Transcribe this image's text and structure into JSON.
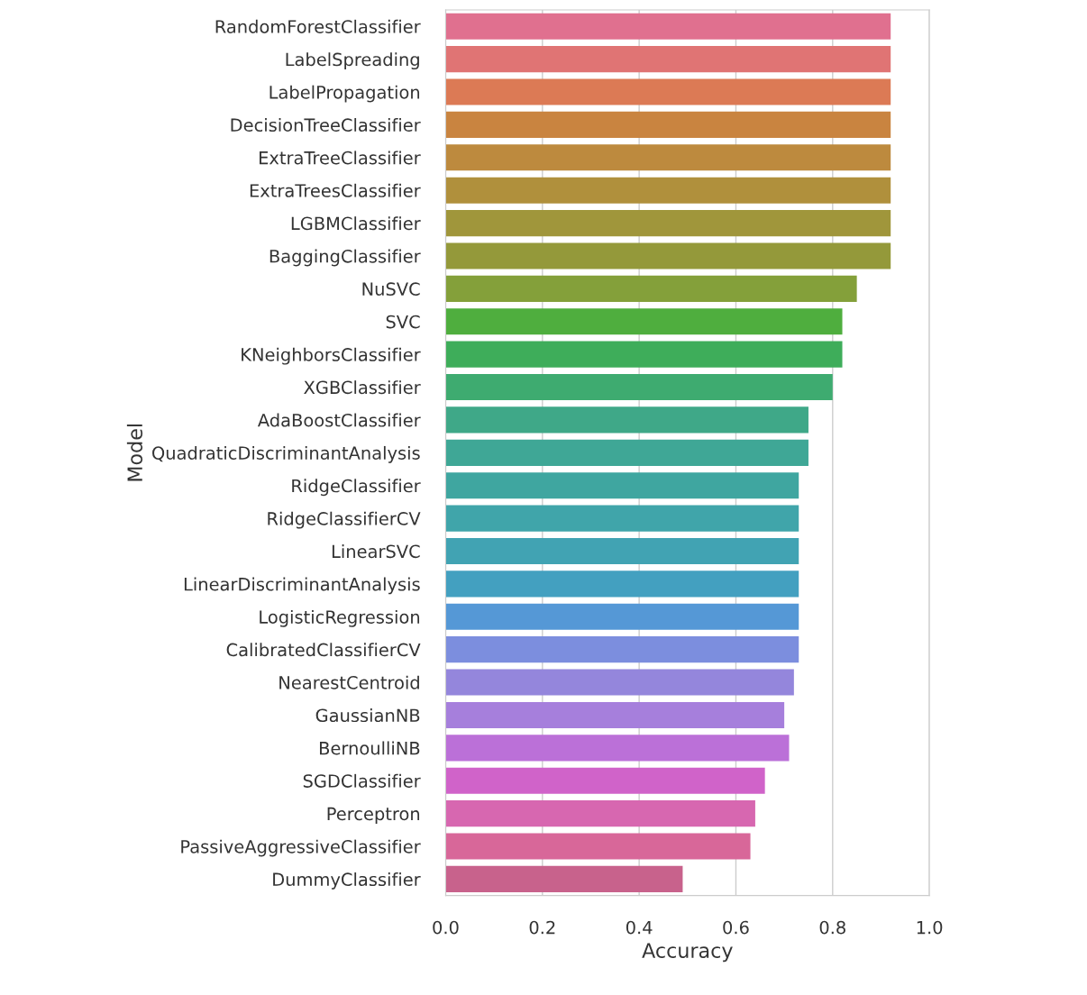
{
  "chart_data": {
    "type": "bar",
    "orientation": "horizontal",
    "xlabel": "Accuracy",
    "ylabel": "Model",
    "categories": [
      "RandomForestClassifier",
      "LabelSpreading",
      "LabelPropagation",
      "DecisionTreeClassifier",
      "ExtraTreeClassifier",
      "ExtraTreesClassifier",
      "LGBMClassifier",
      "BaggingClassifier",
      "NuSVC",
      "SVC",
      "KNeighborsClassifier",
      "XGBClassifier",
      "AdaBoostClassifier",
      "QuadraticDiscriminantAnalysis",
      "RidgeClassifier",
      "RidgeClassifierCV",
      "LinearSVC",
      "LinearDiscriminantAnalysis",
      "LogisticRegression",
      "CalibratedClassifierCV",
      "NearestCentroid",
      "GaussianNB",
      "BernoulliNB",
      "SGDClassifier",
      "Perceptron",
      "PassiveAggressiveClassifier",
      "DummyClassifier"
    ],
    "values": [
      0.92,
      0.92,
      0.92,
      0.92,
      0.92,
      0.92,
      0.92,
      0.92,
      0.85,
      0.82,
      0.82,
      0.8,
      0.75,
      0.75,
      0.73,
      0.73,
      0.73,
      0.73,
      0.73,
      0.73,
      0.72,
      0.7,
      0.71,
      0.66,
      0.64,
      0.63,
      0.49
    ],
    "colors": [
      "#e0708f",
      "#e07474",
      "#dc7a55",
      "#c98440",
      "#bd8a3e",
      "#b0903c",
      "#a0963b",
      "#94993a",
      "#84a03a",
      "#4fae3e",
      "#3ead5a",
      "#3eab70",
      "#3fa888",
      "#3fa796",
      "#3fa6a0",
      "#40a5aa",
      "#41a3b3",
      "#43a0c0",
      "#5598d6",
      "#7c8ede",
      "#9486dc",
      "#a67fdc",
      "#bb70d8",
      "#d063c9",
      "#d767b0",
      "#d86799",
      "#c8628c"
    ],
    "xlim": [
      0.0,
      1.0
    ],
    "xticks": [
      {
        "value": 0.0,
        "label": "0.0"
      },
      {
        "value": 0.2,
        "label": "0.2"
      },
      {
        "value": 0.4,
        "label": "0.4"
      },
      {
        "value": 0.6,
        "label": "0.6"
      },
      {
        "value": 0.8,
        "label": "0.8"
      },
      {
        "value": 1.0,
        "label": "1.0"
      }
    ],
    "grid": "x"
  }
}
